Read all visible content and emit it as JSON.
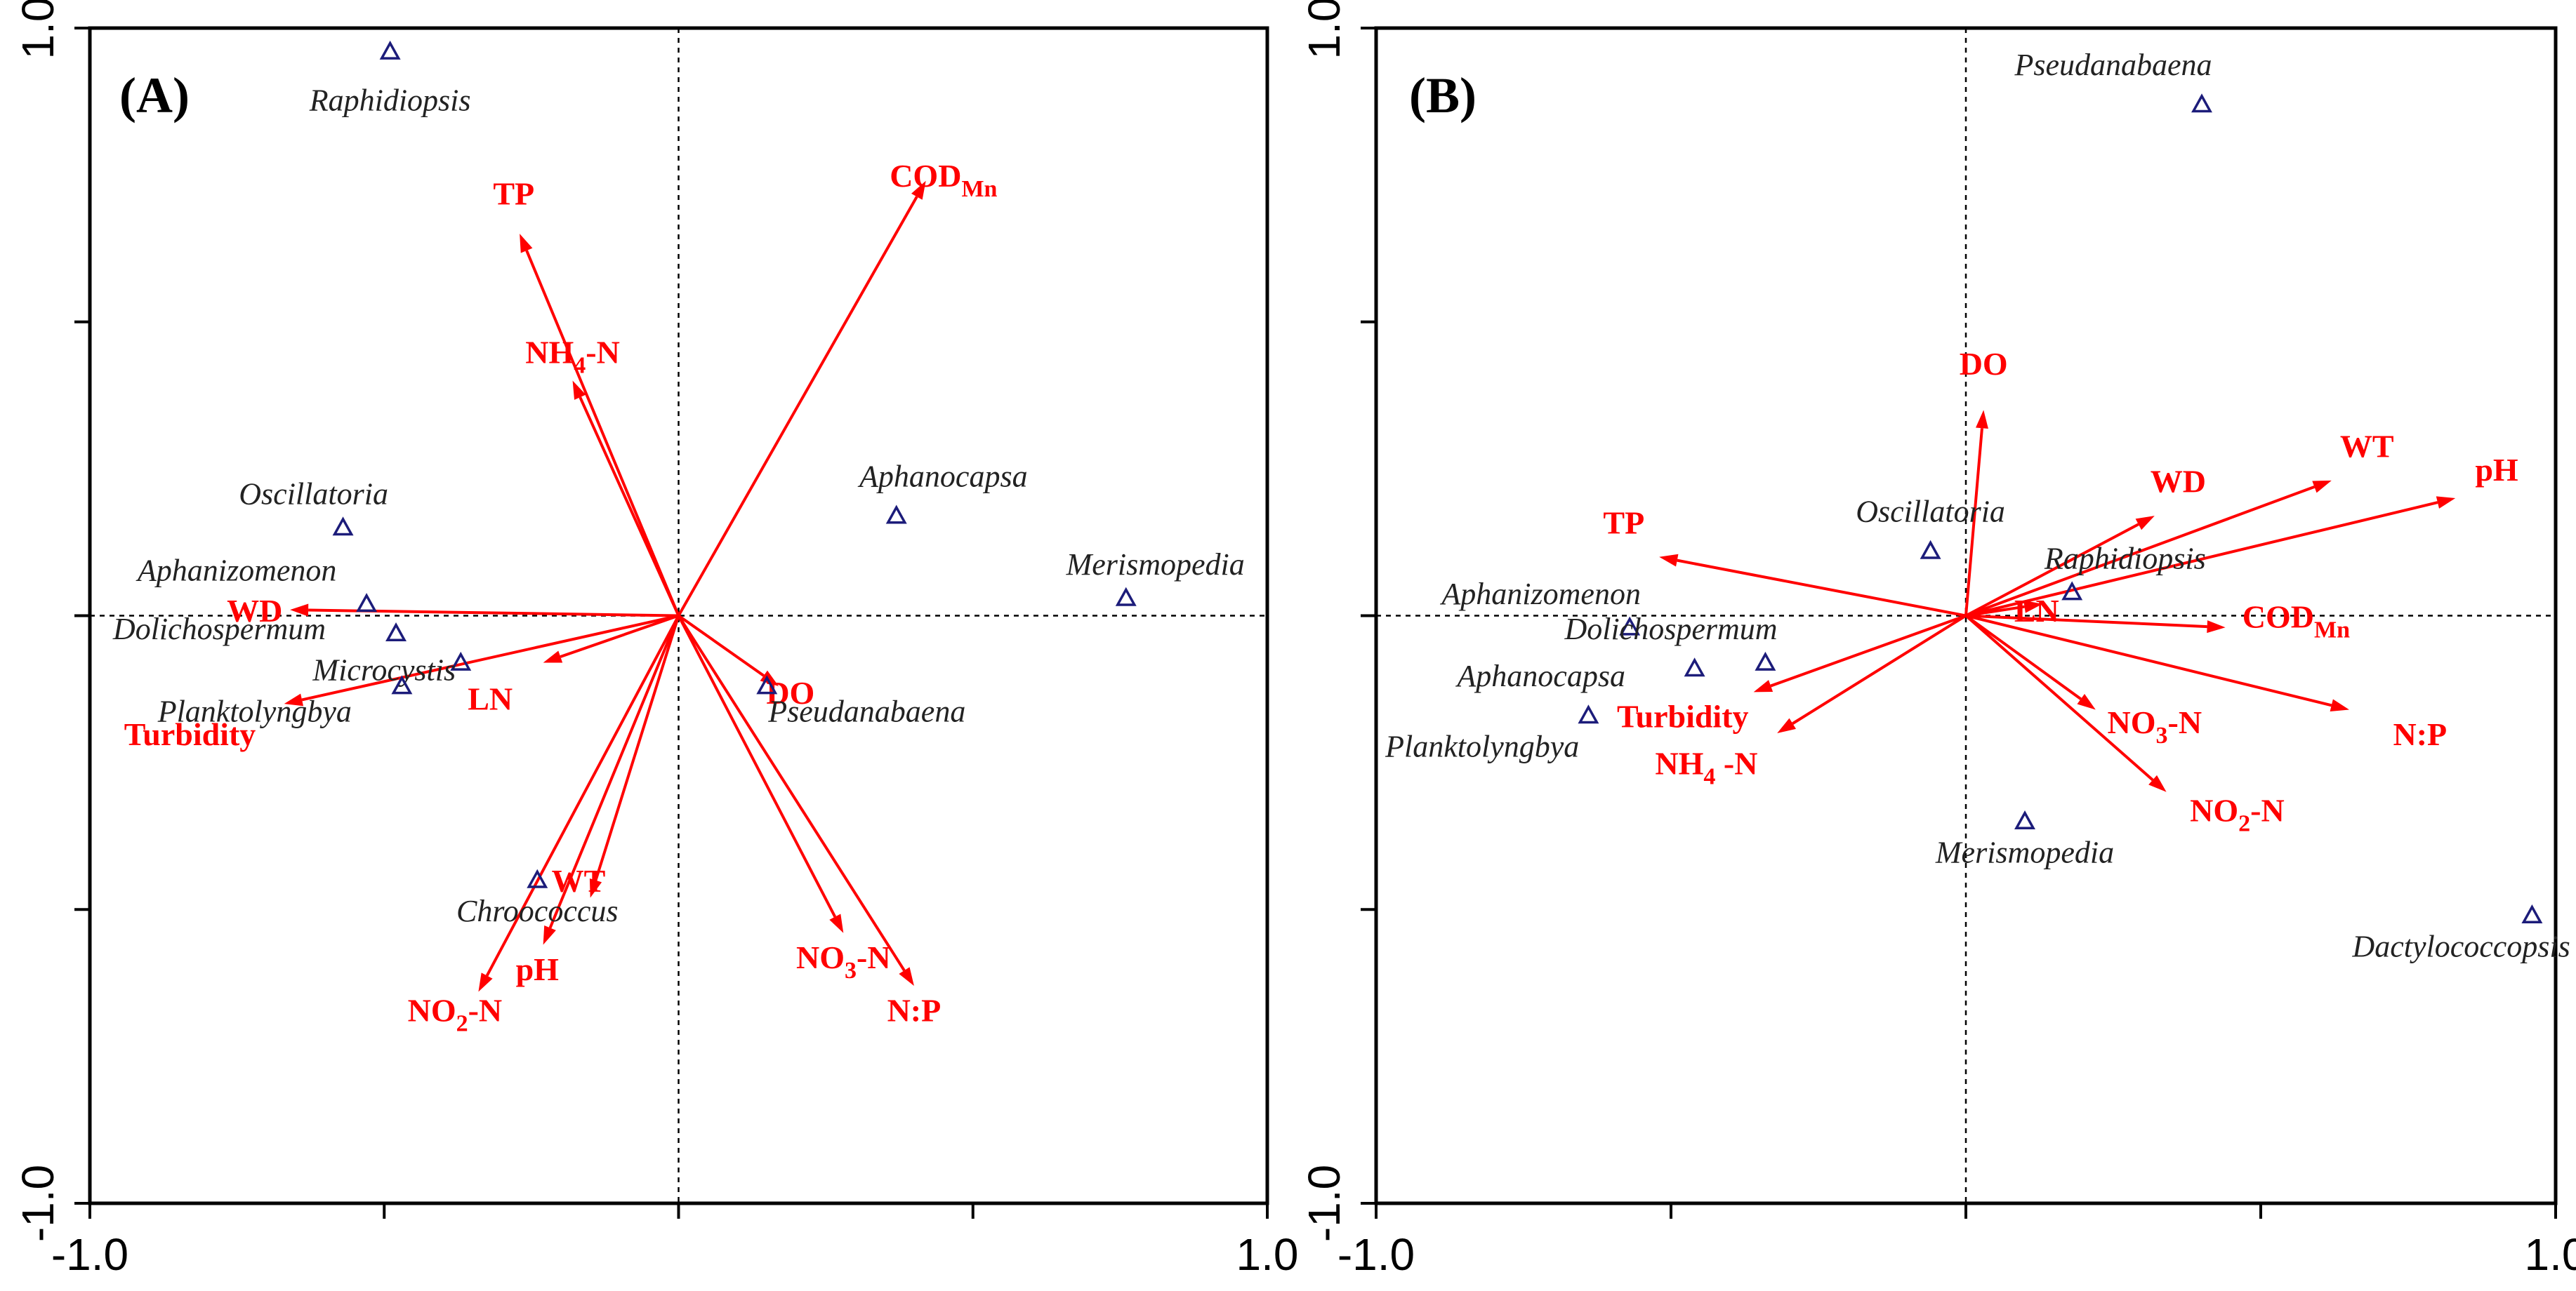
{
  "chart_data": [
    {
      "type": "scatter",
      "subtype": "ordination-biplot",
      "panel_label": "(A)",
      "xlim": [
        -1.0,
        1.0
      ],
      "ylim": [
        -1.0,
        1.0
      ],
      "x_tick_labels": [
        "-1.0",
        "1.0"
      ],
      "y_tick_labels": [
        "-1.0",
        "1.0"
      ],
      "env_variables": [
        {
          "name": "TP",
          "x": -0.27,
          "y": 0.65,
          "lx": -0.28,
          "ly": 0.7,
          "anchor": "middle"
        },
        {
          "name": "COD",
          "sub": "Mn",
          "x": 0.42,
          "y": 0.74,
          "lx": 0.45,
          "ly": 0.73,
          "anchor": "middle"
        },
        {
          "name": "NH",
          "sub": "4",
          "post": "-N",
          "x": -0.18,
          "y": 0.4,
          "lx": -0.18,
          "ly": 0.43,
          "anchor": "middle"
        },
        {
          "name": "WD",
          "x": -0.66,
          "y": 0.01,
          "lx": -0.72,
          "ly": -0.01,
          "anchor": "middle"
        },
        {
          "name": "Turbidity",
          "x": -0.67,
          "y": -0.15,
          "lx": -0.83,
          "ly": -0.22,
          "anchor": "middle"
        },
        {
          "name": "LN",
          "x": -0.23,
          "y": -0.08,
          "lx": -0.32,
          "ly": -0.16,
          "anchor": "middle"
        },
        {
          "name": "DO",
          "x": 0.17,
          "y": -0.12,
          "lx": 0.19,
          "ly": -0.15,
          "anchor": "middle"
        },
        {
          "name": "WT",
          "x": -0.15,
          "y": -0.48,
          "lx": -0.17,
          "ly": -0.47,
          "anchor": "middle"
        },
        {
          "name": "pH",
          "x": -0.23,
          "y": -0.56,
          "lx": -0.24,
          "ly": -0.62,
          "anchor": "middle"
        },
        {
          "name": "NO",
          "sub": "2",
          "post": "-N",
          "x": -0.34,
          "y": -0.64,
          "lx": -0.38,
          "ly": -0.69,
          "anchor": "middle"
        },
        {
          "name": "NO",
          "sub": "3",
          "post": "-N",
          "x": 0.28,
          "y": -0.54,
          "lx": 0.28,
          "ly": -0.6,
          "anchor": "middle"
        },
        {
          "name": "N:P",
          "x": 0.4,
          "y": -0.63,
          "lx": 0.4,
          "ly": -0.69,
          "anchor": "middle"
        }
      ],
      "species": [
        {
          "name": "Raphidiopsis",
          "x": -0.49,
          "y": 0.96,
          "lx": -0.49,
          "ly": 0.86,
          "anchor": "middle"
        },
        {
          "name": "Oscillatoria",
          "x": -0.57,
          "y": 0.15,
          "lx": -0.62,
          "ly": 0.19,
          "anchor": "middle"
        },
        {
          "name": "Aphanizomenon",
          "x": -0.53,
          "y": 0.02,
          "lx": -0.75,
          "ly": 0.06,
          "anchor": "middle"
        },
        {
          "name": "Dolichospermum",
          "x": -0.48,
          "y": -0.03,
          "lx": -0.78,
          "ly": -0.04,
          "anchor": "middle"
        },
        {
          "name": "Microcystis",
          "x": -0.37,
          "y": -0.08,
          "lx": -0.5,
          "ly": -0.11,
          "anchor": "middle"
        },
        {
          "name": "Planktolyngbya",
          "x": -0.47,
          "y": -0.12,
          "lx": -0.72,
          "ly": -0.18,
          "anchor": "middle"
        },
        {
          "name": "Aphanocapsa",
          "x": 0.37,
          "y": 0.17,
          "lx": 0.45,
          "ly": 0.22,
          "anchor": "middle"
        },
        {
          "name": "Merismopedia",
          "x": 0.76,
          "y": 0.03,
          "lx": 0.81,
          "ly": 0.07,
          "anchor": "middle"
        },
        {
          "name": "Pseudanabaena",
          "x": 0.15,
          "y": -0.12,
          "lx": 0.32,
          "ly": -0.18,
          "anchor": "middle"
        },
        {
          "name": "Chroococcus",
          "x": -0.24,
          "y": -0.45,
          "lx": -0.24,
          "ly": -0.52,
          "anchor": "middle"
        }
      ]
    },
    {
      "type": "scatter",
      "subtype": "ordination-biplot",
      "panel_label": "(B)",
      "xlim": [
        -1.0,
        1.0
      ],
      "ylim": [
        -1.0,
        1.0
      ],
      "x_tick_labels": [
        "-1.0",
        "1.0"
      ],
      "y_tick_labels": [
        "-1.0",
        "1.0"
      ],
      "env_variables": [
        {
          "name": "DO",
          "x": 0.03,
          "y": 0.35,
          "lx": 0.03,
          "ly": 0.41,
          "anchor": "middle"
        },
        {
          "name": "WT",
          "x": 0.62,
          "y": 0.23,
          "lx": 0.68,
          "ly": 0.27,
          "anchor": "middle"
        },
        {
          "name": "pH",
          "x": 0.83,
          "y": 0.2,
          "lx": 0.9,
          "ly": 0.23,
          "anchor": "middle"
        },
        {
          "name": "WD",
          "x": 0.32,
          "y": 0.17,
          "lx": 0.36,
          "ly": 0.21,
          "anchor": "middle"
        },
        {
          "name": "TP",
          "x": -0.52,
          "y": 0.1,
          "lx": -0.58,
          "ly": 0.14,
          "anchor": "middle"
        },
        {
          "name": "LN",
          "x": 0.13,
          "y": 0.02,
          "lx": 0.12,
          "ly": -0.01,
          "anchor": "middle"
        },
        {
          "name": "COD",
          "sub": "Mn",
          "x": 0.44,
          "y": -0.02,
          "lx": 0.56,
          "ly": -0.02,
          "anchor": "middle"
        },
        {
          "name": "Turbidity",
          "x": -0.36,
          "y": -0.13,
          "lx": -0.48,
          "ly": -0.19,
          "anchor": "middle"
        },
        {
          "name": "NH",
          "sub": "4",
          "post": " -N",
          "x": -0.32,
          "y": -0.2,
          "lx": -0.44,
          "ly": -0.27,
          "anchor": "middle"
        },
        {
          "name": "NO",
          "sub": "3",
          "post": "-N",
          "x": 0.22,
          "y": -0.16,
          "lx": 0.32,
          "ly": -0.2,
          "anchor": "middle"
        },
        {
          "name": "NO",
          "sub": "2",
          "post": "-N",
          "x": 0.34,
          "y": -0.3,
          "lx": 0.46,
          "ly": -0.35,
          "anchor": "middle"
        },
        {
          "name": "N:P",
          "x": 0.65,
          "y": -0.16,
          "lx": 0.77,
          "ly": -0.22,
          "anchor": "middle"
        }
      ],
      "species": [
        {
          "name": "Pseudanabaena",
          "x": 0.4,
          "y": 0.87,
          "lx": 0.25,
          "ly": 0.92,
          "anchor": "middle"
        },
        {
          "name": "Oscillatoria",
          "x": -0.06,
          "y": 0.11,
          "lx": -0.06,
          "ly": 0.16,
          "anchor": "middle"
        },
        {
          "name": "Raphidiopsis",
          "x": 0.18,
          "y": 0.04,
          "lx": 0.27,
          "ly": 0.08,
          "anchor": "middle"
        },
        {
          "name": "Aphanizomenon",
          "x": -0.57,
          "y": -0.02,
          "lx": -0.72,
          "ly": 0.02,
          "anchor": "middle"
        },
        {
          "name": "Dolichospermum",
          "x": -0.34,
          "y": -0.08,
          "lx": -0.5,
          "ly": -0.04,
          "anchor": "middle"
        },
        {
          "name": "Aphanocapsa",
          "x": -0.46,
          "y": -0.09,
          "lx": -0.72,
          "ly": -0.12,
          "anchor": "middle"
        },
        {
          "name": "Planktolyngbya",
          "x": -0.64,
          "y": -0.17,
          "lx": -0.82,
          "ly": -0.24,
          "anchor": "middle"
        },
        {
          "name": "Merismopedia",
          "x": 0.1,
          "y": -0.35,
          "lx": 0.1,
          "ly": -0.42,
          "anchor": "middle"
        },
        {
          "name": "Dactylococcopsis",
          "x": 0.96,
          "y": -0.51,
          "lx": 0.84,
          "ly": -0.58,
          "anchor": "middle"
        }
      ]
    }
  ]
}
